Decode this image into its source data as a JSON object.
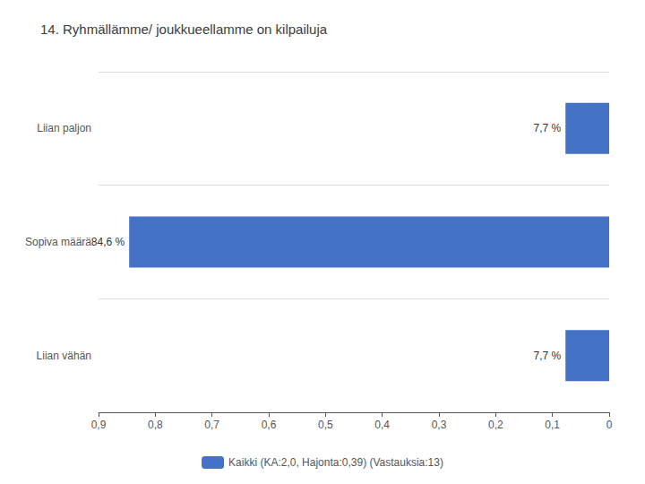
{
  "chart_data": {
    "type": "bar",
    "orientation": "horizontal",
    "title": "14. Ryhmällämme/ joukkueellamme on kilpailuja",
    "categories": [
      "Liian paljon",
      "Sopiva määrä",
      "Liian vähän"
    ],
    "series": [
      {
        "name": "Kaikki (KA:2,0, Hajonta:0,39) (Vastauksia:13)",
        "color": "#4472C4",
        "values": [
          0.077,
          0.846,
          0.077
        ],
        "value_labels": [
          "7,7 %",
          "84,6 %",
          "7,7 %"
        ]
      }
    ],
    "xlim": [
      0.9,
      0.0
    ],
    "xticks": [
      {
        "value": 0.9,
        "label": "0,9"
      },
      {
        "value": 0.8,
        "label": "0,8"
      },
      {
        "value": 0.7,
        "label": "0,7"
      },
      {
        "value": 0.6,
        "label": "0,6"
      },
      {
        "value": 0.5,
        "label": "0,5"
      },
      {
        "value": 0.4,
        "label": "0,4"
      },
      {
        "value": 0.3,
        "label": "0,3"
      },
      {
        "value": 0.2,
        "label": "0,2"
      },
      {
        "value": 0.1,
        "label": "0,1"
      },
      0
    ],
    "data_labels": true,
    "legend": "bottom",
    "grid": true
  }
}
